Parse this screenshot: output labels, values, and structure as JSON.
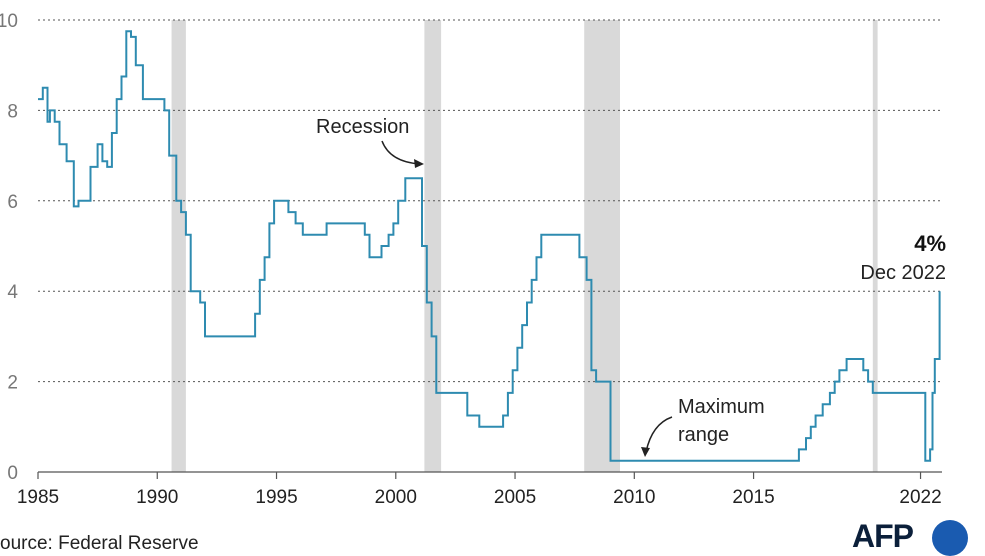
{
  "chart_data": {
    "type": "line",
    "step": true,
    "xlim": [
      1985,
      2022.9
    ],
    "ylim": [
      0,
      10
    ],
    "x_ticks": [
      1985,
      1990,
      1995,
      2000,
      2005,
      2010,
      2015,
      2022
    ],
    "y_ticks": [
      0,
      2,
      4,
      6,
      8,
      10
    ],
    "grid": "horizontal-dotted",
    "line_color": "#2e8bb0",
    "recession_color": "#d9d9d9",
    "recessions": [
      [
        1990.6,
        1991.2
      ],
      [
        2001.2,
        2001.9
      ],
      [
        2007.9,
        2009.4
      ],
      [
        2020.0,
        2020.2
      ]
    ],
    "annotations": {
      "recession": "Recession",
      "maximum_range": "Maximum\nrange"
    },
    "last_value_label": "4%",
    "last_date_label": "Dec 2022",
    "source": "ource: Federal Reserve",
    "x": [
      1985.0,
      1985.2,
      1985.4,
      1985.5,
      1985.7,
      1985.9,
      1986.2,
      1986.5,
      1986.7,
      1986.9,
      1987.2,
      1987.5,
      1987.7,
      1987.9,
      1988.1,
      1988.3,
      1988.5,
      1988.7,
      1988.9,
      1989.1,
      1989.4,
      1989.6,
      1989.8,
      1990.0,
      1990.3,
      1990.5,
      1990.8,
      1991.0,
      1991.2,
      1991.4,
      1991.6,
      1991.8,
      1992.0,
      1992.5,
      1992.7,
      1993.0,
      1994.1,
      1994.3,
      1994.5,
      1994.7,
      1994.9,
      1995.1,
      1995.5,
      1995.8,
      1996.1,
      1997.1,
      1998.7,
      1998.9,
      1999.4,
      1999.7,
      1999.9,
      2000.1,
      2000.4,
      2001.1,
      2001.3,
      2001.5,
      2001.7,
      2001.9,
      2003.0,
      2003.5,
      2004.5,
      2004.7,
      2004.9,
      2005.1,
      2005.3,
      2005.5,
      2005.7,
      2005.9,
      2006.1,
      2006.3,
      2006.5,
      2007.7,
      2008.0,
      2008.2,
      2008.4,
      2008.6,
      2009.0,
      2015.9,
      2016.9,
      2017.2,
      2017.4,
      2017.6,
      2017.9,
      2018.2,
      2018.4,
      2018.6,
      2018.9,
      2019.6,
      2019.8,
      2020.0,
      2022.2,
      2022.4,
      2022.5,
      2022.6,
      2022.8
    ],
    "y": [
      8.25,
      8.5,
      7.75,
      8.0,
      7.75,
      7.25,
      6.875,
      5.875,
      6.0,
      6.0,
      6.75,
      7.25,
      6.875,
      6.75,
      7.5,
      8.25,
      8.75,
      9.75,
      9.625,
      9.0,
      8.25,
      8.25,
      8.25,
      8.25,
      8.0,
      7.0,
      6.0,
      5.75,
      5.25,
      4.0,
      4.0,
      3.75,
      3.0,
      3.0,
      3.0,
      3.0,
      3.5,
      4.25,
      4.75,
      5.5,
      6.0,
      6.0,
      5.75,
      5.5,
      5.25,
      5.5,
      5.25,
      4.75,
      5.0,
      5.25,
      5.5,
      6.0,
      6.5,
      5.0,
      3.75,
      3.0,
      1.75,
      1.75,
      1.25,
      1.0,
      1.25,
      1.75,
      2.25,
      2.75,
      3.25,
      3.75,
      4.25,
      4.75,
      5.25,
      5.25,
      5.25,
      4.75,
      4.25,
      2.25,
      2.0,
      2.0,
      0.25,
      0.25,
      0.5,
      0.75,
      1.0,
      1.25,
      1.5,
      1.75,
      2.0,
      2.25,
      2.5,
      2.25,
      2.0,
      1.75,
      0.25,
      0.5,
      1.75,
      2.5,
      4.0
    ]
  }
}
